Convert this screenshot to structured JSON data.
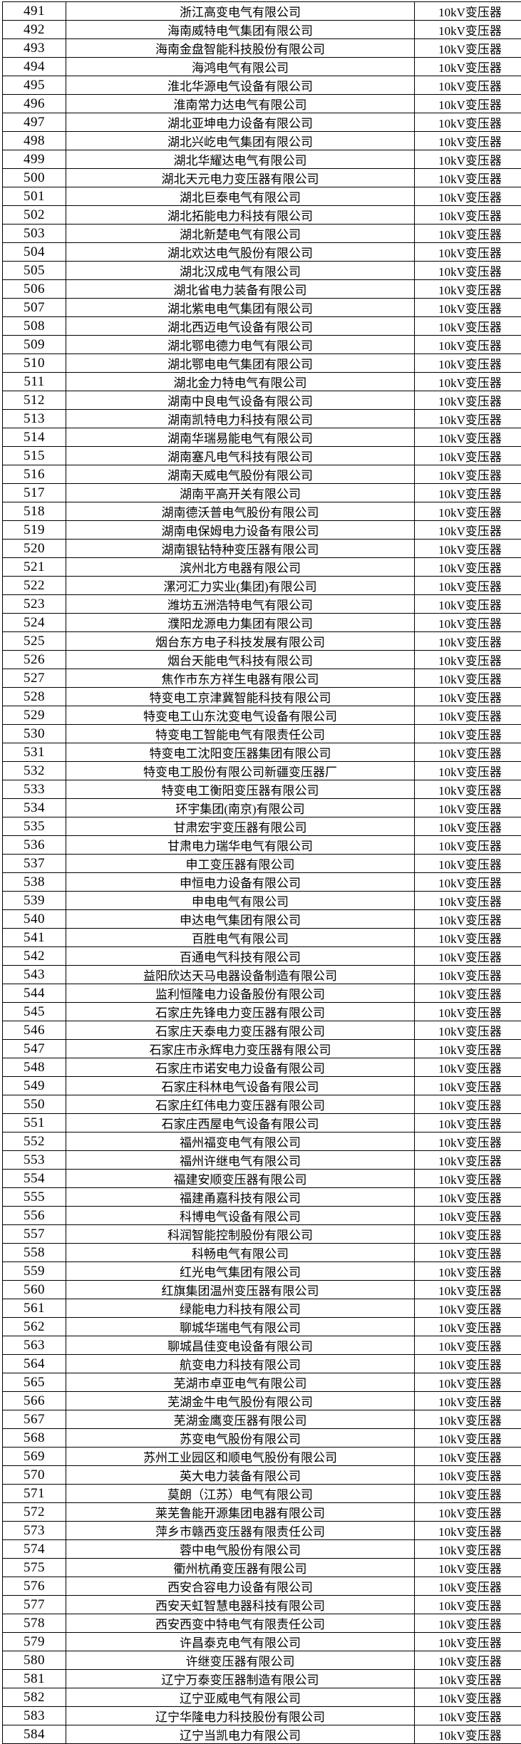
{
  "table": {
    "rows": [
      {
        "no": "491",
        "company": "浙江高变电气有限公司",
        "product": "10kV变压器"
      },
      {
        "no": "492",
        "company": "海南威特电气集团有限公司",
        "product": "10kV变压器"
      },
      {
        "no": "493",
        "company": "海南金盘智能科技股份有限公司",
        "product": "10kV变压器"
      },
      {
        "no": "494",
        "company": "海鸿电气有限公司",
        "product": "10kV变压器"
      },
      {
        "no": "495",
        "company": "淮北华源电气设备有限公司",
        "product": "10kV变压器"
      },
      {
        "no": "496",
        "company": "淮南常力达电气有限公司",
        "product": "10kV变压器"
      },
      {
        "no": "497",
        "company": "湖北亚坤电力设备有限公司",
        "product": "10kV变压器"
      },
      {
        "no": "498",
        "company": "湖北兴屹电气集团有限公司",
        "product": "10kV变压器"
      },
      {
        "no": "499",
        "company": "湖北华耀达电气有限公司",
        "product": "10kV变压器"
      },
      {
        "no": "500",
        "company": "湖北天元电力变压器有限公司",
        "product": "10kV变压器"
      },
      {
        "no": "501",
        "company": "湖北巨泰电气有限公司",
        "product": "10kV变压器"
      },
      {
        "no": "502",
        "company": "湖北拓能电力科技有限公司",
        "product": "10kV变压器"
      },
      {
        "no": "503",
        "company": "湖北新楚电气有限公司",
        "product": "10kV变压器"
      },
      {
        "no": "504",
        "company": "湖北欢达电气股份有限公司",
        "product": "10kV变压器"
      },
      {
        "no": "505",
        "company": "湖北汉成电气有限公司",
        "product": "10kV变压器"
      },
      {
        "no": "506",
        "company": "湖北省电力装备有限公司",
        "product": "10kV变压器"
      },
      {
        "no": "507",
        "company": "湖北紫电电气集团有限公司",
        "product": "10kV变压器"
      },
      {
        "no": "508",
        "company": "湖北西迈电气设备有限公司",
        "product": "10kV变压器"
      },
      {
        "no": "509",
        "company": "湖北鄂电德力电气有限公司",
        "product": "10kV变压器"
      },
      {
        "no": "510",
        "company": "湖北鄂电电气集团有限公司",
        "product": "10kV变压器"
      },
      {
        "no": "511",
        "company": "湖北金力特电气有限公司",
        "product": "10kV变压器"
      },
      {
        "no": "512",
        "company": "湖南中良电气设备有限公司",
        "product": "10kV变压器"
      },
      {
        "no": "513",
        "company": "湖南凯特电力科技有限公司",
        "product": "10kV变压器"
      },
      {
        "no": "514",
        "company": "湖南华瑞易能电气有限公司",
        "product": "10kV变压器"
      },
      {
        "no": "515",
        "company": "湖南塞凡电气科技有限公司",
        "product": "10kV变压器"
      },
      {
        "no": "516",
        "company": "湖南天威电气股份有限公司",
        "product": "10kV变压器"
      },
      {
        "no": "517",
        "company": "湖南平高开关有限公司",
        "product": "10kV变压器"
      },
      {
        "no": "518",
        "company": "湖南德沃普电气股份有限公司",
        "product": "10kV变压器"
      },
      {
        "no": "519",
        "company": "湖南电保姆电力设备有限公司",
        "product": "10kV变压器"
      },
      {
        "no": "520",
        "company": "湖南银钻特种变压器有限公司",
        "product": "10kV变压器"
      },
      {
        "no": "521",
        "company": "滨州北方电器有限公司",
        "product": "10kV变压器"
      },
      {
        "no": "522",
        "company": "漯河汇力实业(集团)有限公司",
        "product": "10kV变压器"
      },
      {
        "no": "523",
        "company": "潍坊五洲浩特电气有限公司",
        "product": "10kV变压器"
      },
      {
        "no": "524",
        "company": "濮阳龙源电力集团有限公司",
        "product": "10kV变压器"
      },
      {
        "no": "525",
        "company": "烟台东方电子科技发展有限公司",
        "product": "10kV变压器"
      },
      {
        "no": "526",
        "company": "烟台天能电气科技有限公司",
        "product": "10kV变压器"
      },
      {
        "no": "527",
        "company": "焦作市东方祥生电器有限公司",
        "product": "10kV变压器"
      },
      {
        "no": "528",
        "company": "特变电工京津冀智能科技有限公司",
        "product": "10kV变压器"
      },
      {
        "no": "529",
        "company": "特变电工山东沈变电气设备有限公司",
        "product": "10kV变压器"
      },
      {
        "no": "530",
        "company": "特变电工智能电气有限责任公司",
        "product": "10kV变压器"
      },
      {
        "no": "531",
        "company": "特变电工沈阳变压器集团有限公司",
        "product": "10kV变压器"
      },
      {
        "no": "532",
        "company": "特变电工股份有限公司新疆变压器厂",
        "product": "10kV变压器"
      },
      {
        "no": "533",
        "company": "特变电工衡阳变压器有限公司",
        "product": "10kV变压器"
      },
      {
        "no": "534",
        "company": "环宇集团(南京)有限公司",
        "product": "10kV变压器"
      },
      {
        "no": "535",
        "company": "甘肃宏宇变压器有限公司",
        "product": "10kV变压器"
      },
      {
        "no": "536",
        "company": "甘肃电力瑞华电气有限公司",
        "product": "10kV变压器"
      },
      {
        "no": "537",
        "company": "申工变压器有限公司",
        "product": "10kV变压器"
      },
      {
        "no": "538",
        "company": "申恒电力设备有限公司",
        "product": "10kV变压器"
      },
      {
        "no": "539",
        "company": "申电电气有限公司",
        "product": "10kV变压器"
      },
      {
        "no": "540",
        "company": "申达电气集团有限公司",
        "product": "10kV变压器"
      },
      {
        "no": "541",
        "company": "百胜电气有限公司",
        "product": "10kV变压器"
      },
      {
        "no": "542",
        "company": "百通电气科技有限公司",
        "product": "10kV变压器"
      },
      {
        "no": "543",
        "company": "益阳欣达天马电器设备制造有限公司",
        "product": "10kV变压器"
      },
      {
        "no": "544",
        "company": "监利恒隆电力设备股份有限公司",
        "product": "10kV变压器"
      },
      {
        "no": "545",
        "company": "石家庄先锋电力变压器有限公司",
        "product": "10kV变压器"
      },
      {
        "no": "546",
        "company": "石家庄天泰电力变压器有限公司",
        "product": "10kV变压器"
      },
      {
        "no": "547",
        "company": "石家庄市永辉电力变压器有限公司",
        "product": "10kV变压器"
      },
      {
        "no": "548",
        "company": "石家庄市诺安电力设备有限公司",
        "product": "10kV变压器"
      },
      {
        "no": "549",
        "company": "石家庄科林电气设备有限公司",
        "product": "10kV变压器"
      },
      {
        "no": "550",
        "company": "石家庄红伟电力变压器有限公司",
        "product": "10kV变压器"
      },
      {
        "no": "551",
        "company": "石家庄西屋电气设备有限公司",
        "product": "10kV变压器"
      },
      {
        "no": "552",
        "company": "福州福变电气有限公司",
        "product": "10kV变压器"
      },
      {
        "no": "553",
        "company": "福州许继电气有限公司",
        "product": "10kV变压器"
      },
      {
        "no": "554",
        "company": "福建安顺变压器有限公司",
        "product": "10kV变压器"
      },
      {
        "no": "555",
        "company": "福建甬嘉科技有限公司",
        "product": "10kV变压器"
      },
      {
        "no": "556",
        "company": "科博电气设备有限公司",
        "product": "10kV变压器"
      },
      {
        "no": "557",
        "company": "科润智能控制股份有限公司",
        "product": "10kV变压器"
      },
      {
        "no": "558",
        "company": "科畅电气有限公司",
        "product": "10kV变压器"
      },
      {
        "no": "559",
        "company": "红光电气集团有限公司",
        "product": "10kV变压器"
      },
      {
        "no": "560",
        "company": "红旗集团温州变压器有限公司",
        "product": "10kV变压器"
      },
      {
        "no": "561",
        "company": "绿能电力科技有限公司",
        "product": "10kV变压器"
      },
      {
        "no": "562",
        "company": "聊城华瑞电气有限公司",
        "product": "10kV变压器"
      },
      {
        "no": "563",
        "company": "聊城昌佳变电设备有限公司",
        "product": "10kV变压器"
      },
      {
        "no": "564",
        "company": "航变电力科技有限公司",
        "product": "10kV变压器"
      },
      {
        "no": "565",
        "company": "芜湖市卓亚电气有限公司",
        "product": "10kV变压器"
      },
      {
        "no": "566",
        "company": "芜湖金牛电气股份有限公司",
        "product": "10kV变压器"
      },
      {
        "no": "567",
        "company": "芜湖金鹰变压器有限公司",
        "product": "10kV变压器"
      },
      {
        "no": "568",
        "company": "苏变电气股份有限公司",
        "product": "10kV变压器"
      },
      {
        "no": "569",
        "company": "苏州工业园区和顺电气股份有限公司",
        "product": "10kV变压器"
      },
      {
        "no": "570",
        "company": "英大电力装备有限公司",
        "product": "10kV变压器"
      },
      {
        "no": "571",
        "company": "莫朗（江苏）电气有限公司",
        "product": "10kV变压器"
      },
      {
        "no": "572",
        "company": "莱芜鲁能开源集团电器有限公司",
        "product": "10kV变压器"
      },
      {
        "no": "573",
        "company": "萍乡市赣西变压器有限责任公司",
        "product": "10kV变压器"
      },
      {
        "no": "574",
        "company": "蓉中电气股份有限公司",
        "product": "10kV变压器"
      },
      {
        "no": "575",
        "company": "衢州杭甬变压器有限公司",
        "product": "10kV变压器"
      },
      {
        "no": "576",
        "company": "西安合容电力设备有限公司",
        "product": "10kV变压器"
      },
      {
        "no": "577",
        "company": "西安天虹智慧电器科技有限公司",
        "product": "10kV变压器"
      },
      {
        "no": "578",
        "company": "西安西变中特电气有限责任公司",
        "product": "10kV变压器"
      },
      {
        "no": "579",
        "company": "许昌泰克电气有限公司",
        "product": "10kV变压器"
      },
      {
        "no": "580",
        "company": "许继变压器有限公司",
        "product": "10kV变压器"
      },
      {
        "no": "581",
        "company": "辽宁万泰变压器制造有限公司",
        "product": "10kV变压器"
      },
      {
        "no": "582",
        "company": "辽宁亚威电气有限公司",
        "product": "10kV变压器"
      },
      {
        "no": "583",
        "company": "辽宁华隆电力科技股份有限公司",
        "product": "10kV变压器"
      },
      {
        "no": "584",
        "company": "辽宁当凯电力有限公司",
        "product": "10kV变压器"
      }
    ]
  }
}
